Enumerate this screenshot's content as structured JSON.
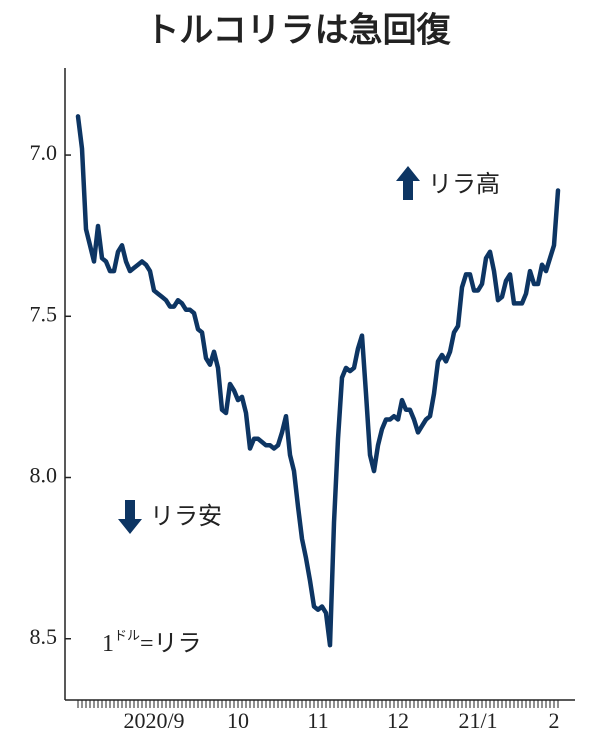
{
  "chart_data": {
    "type": "line",
    "title": "トルコリラは急回復",
    "annotations": [
      "リラ高",
      "リラ安"
    ],
    "unit_label": [
      "1",
      "ドル",
      "=リラ"
    ],
    "ylim": [
      8.69,
      6.73
    ],
    "yticks": [
      {
        "value": 7,
        "label": "7.0"
      },
      7.5,
      {
        "value": 8,
        "label": "8.0"
      },
      8.5
    ],
    "categories": [
      null,
      null,
      null,
      null,
      null,
      null,
      null,
      null,
      null,
      null,
      null,
      null,
      null,
      null,
      null,
      null,
      null,
      null,
      null,
      "2020/9",
      null,
      null,
      null,
      null,
      null,
      null,
      null,
      null,
      null,
      null,
      null,
      null,
      null,
      null,
      null,
      null,
      null,
      null,
      null,
      null,
      "10",
      null,
      null,
      null,
      null,
      null,
      null,
      null,
      null,
      null,
      null,
      null,
      null,
      null,
      null,
      null,
      null,
      null,
      null,
      null,
      "11",
      null,
      null,
      null,
      null,
      null,
      null,
      null,
      null,
      null,
      null,
      null,
      null,
      null,
      null,
      null,
      null,
      null,
      null,
      null,
      "12",
      null,
      null,
      null,
      null,
      null,
      null,
      null,
      null,
      null,
      null,
      null,
      null,
      null,
      null,
      null,
      null,
      null,
      null,
      null,
      "21/1",
      null,
      null,
      null,
      null,
      null,
      null,
      null,
      null,
      null,
      null,
      null,
      null,
      null,
      null,
      null,
      null,
      null,
      null,
      "2",
      null
    ],
    "series": [
      {
        "color": "#0d3563",
        "values": [
          6.88,
          6.98,
          7.23,
          7.28,
          7.33,
          7.22,
          7.32,
          7.33,
          7.36,
          7.36,
          7.3,
          7.28,
          7.33,
          7.36,
          7.35,
          7.34,
          7.33,
          7.34,
          7.36,
          7.42,
          7.43,
          7.44,
          7.45,
          7.47,
          7.47,
          7.45,
          7.46,
          7.48,
          7.48,
          7.49,
          7.54,
          7.55,
          7.63,
          7.65,
          7.61,
          7.66,
          7.79,
          7.8,
          7.71,
          7.73,
          7.76,
          7.75,
          7.8,
          7.91,
          7.88,
          7.88,
          7.89,
          7.9,
          7.9,
          7.91,
          7.9,
          7.86,
          7.81,
          7.93,
          7.98,
          8.09,
          8.19,
          8.25,
          8.32,
          8.4,
          8.41,
          8.4,
          8.42,
          8.52,
          8.14,
          7.88,
          7.69,
          7.66,
          7.67,
          7.66,
          7.6,
          7.56,
          7.74,
          7.93,
          7.98,
          7.9,
          7.85,
          7.82,
          7.82,
          7.81,
          7.82,
          7.76,
          7.79,
          7.79,
          7.82,
          7.86,
          7.84,
          7.82,
          7.81,
          7.74,
          7.64,
          7.62,
          7.64,
          7.61,
          7.55,
          7.53,
          7.41,
          7.37,
          7.37,
          7.42,
          7.42,
          7.4,
          7.32,
          7.3,
          7.36,
          7.45,
          7.44,
          7.39,
          7.37,
          7.46,
          7.46,
          7.46,
          7.43,
          7.36,
          7.4,
          7.4,
          7.34,
          7.36,
          7.32,
          7.28,
          7.11
        ]
      }
    ]
  }
}
